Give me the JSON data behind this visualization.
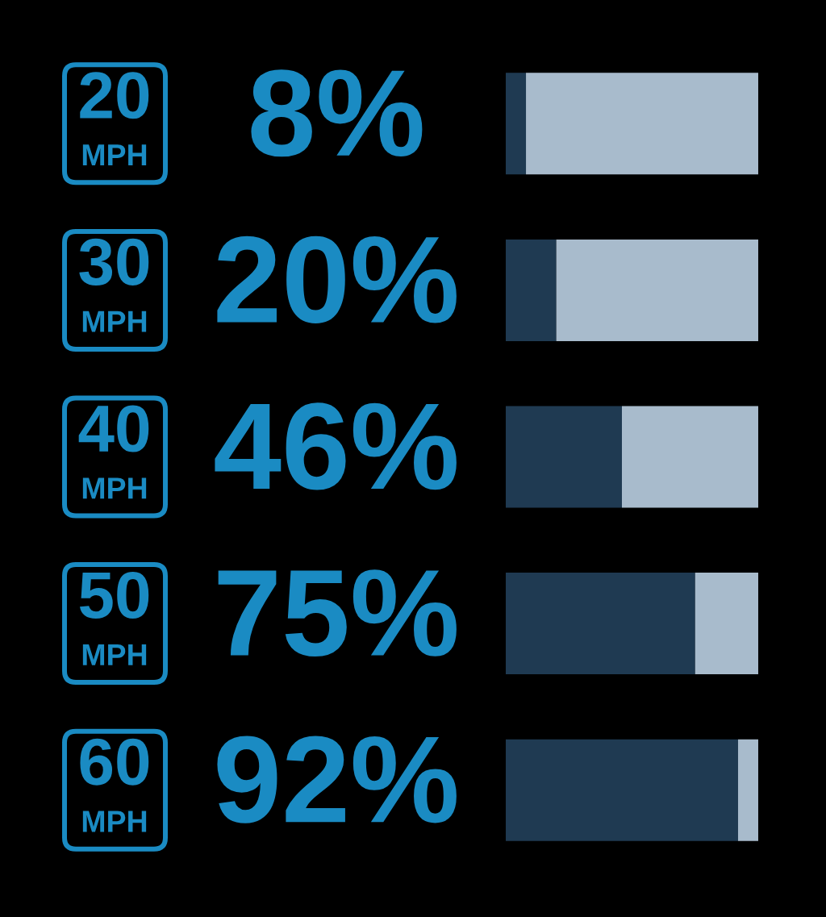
{
  "chart_data": {
    "type": "bar",
    "orientation": "horizontal",
    "stacked": true,
    "categories": [
      "20 MPH",
      "30 MPH",
      "40 MPH",
      "50 MPH",
      "60 MPH"
    ],
    "series": [
      {
        "color": "#1f3a52",
        "values": [
          8,
          20,
          46,
          75,
          92
        ],
        "value_labels": [
          "8%",
          "20%",
          "46%",
          "75%",
          "92%"
        ]
      },
      {
        "color": "#a8bbcc",
        "values": [
          92,
          80,
          54,
          25,
          8
        ]
      }
    ],
    "xlim": [
      0,
      100
    ],
    "tick_labels": "y"
  }
}
